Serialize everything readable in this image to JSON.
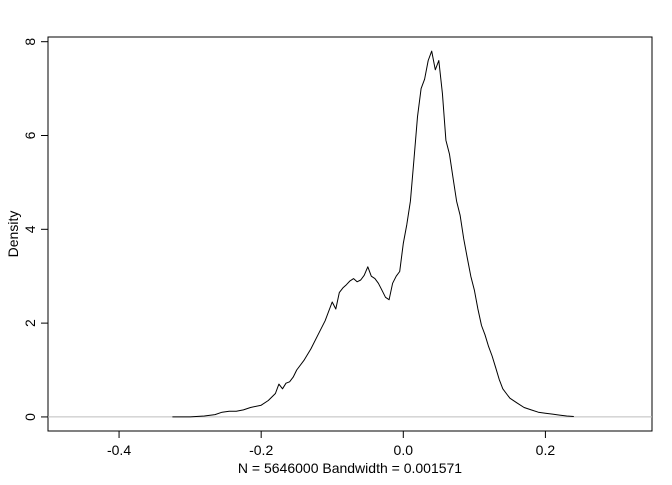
{
  "chart_data": {
    "type": "line",
    "title": "",
    "xlabel": "N = 5646000   Bandwidth = 0.001571",
    "ylabel": "Density",
    "xlim": [
      -0.5,
      0.35
    ],
    "ylim": [
      -0.3,
      8.1
    ],
    "x_ticks": [
      -0.4,
      -0.2,
      0.0,
      0.2
    ],
    "x_tick_labels": [
      "-0.4",
      "-0.2",
      "0.0",
      "0.2"
    ],
    "y_ticks": [
      0,
      2,
      4,
      6,
      8
    ],
    "y_tick_labels": [
      "0",
      "2",
      "4",
      "6",
      "8"
    ],
    "grid": false,
    "baseline": {
      "y": 0,
      "color": "#bebebe"
    },
    "series": [
      {
        "color": "#000000",
        "x": [
          -0.325,
          -0.3,
          -0.28,
          -0.265,
          -0.255,
          -0.245,
          -0.235,
          -0.225,
          -0.215,
          -0.2,
          -0.19,
          -0.18,
          -0.175,
          -0.17,
          -0.165,
          -0.16,
          -0.155,
          -0.15,
          -0.14,
          -0.13,
          -0.12,
          -0.11,
          -0.1,
          -0.095,
          -0.09,
          -0.085,
          -0.08,
          -0.075,
          -0.07,
          -0.065,
          -0.06,
          -0.055,
          -0.05,
          -0.045,
          -0.04,
          -0.035,
          -0.03,
          -0.025,
          -0.02,
          -0.015,
          -0.01,
          -0.005,
          0.0,
          0.005,
          0.01,
          0.015,
          0.02,
          0.025,
          0.03,
          0.035,
          0.04,
          0.045,
          0.05,
          0.055,
          0.06,
          0.065,
          0.07,
          0.075,
          0.08,
          0.085,
          0.09,
          0.095,
          0.1,
          0.105,
          0.11,
          0.115,
          0.12,
          0.125,
          0.13,
          0.135,
          0.14,
          0.145,
          0.15,
          0.16,
          0.17,
          0.18,
          0.19,
          0.2,
          0.21,
          0.22,
          0.23,
          0.24
        ],
        "y": [
          0.0,
          0.0,
          0.02,
          0.05,
          0.1,
          0.12,
          0.12,
          0.15,
          0.2,
          0.25,
          0.35,
          0.5,
          0.7,
          0.6,
          0.72,
          0.75,
          0.85,
          1.0,
          1.2,
          1.45,
          1.75,
          2.05,
          2.45,
          2.3,
          2.65,
          2.75,
          2.82,
          2.9,
          2.95,
          2.88,
          2.92,
          3.02,
          3.2,
          3.0,
          2.95,
          2.85,
          2.7,
          2.55,
          2.5,
          2.85,
          3.0,
          3.1,
          3.7,
          4.1,
          4.6,
          5.5,
          6.4,
          7.0,
          7.2,
          7.6,
          7.8,
          7.4,
          7.6,
          6.9,
          5.9,
          5.6,
          5.1,
          4.6,
          4.3,
          3.8,
          3.4,
          3.0,
          2.7,
          2.3,
          1.95,
          1.75,
          1.5,
          1.3,
          1.05,
          0.8,
          0.6,
          0.5,
          0.4,
          0.3,
          0.2,
          0.15,
          0.1,
          0.08,
          0.06,
          0.04,
          0.02,
          0.01
        ]
      }
    ]
  }
}
